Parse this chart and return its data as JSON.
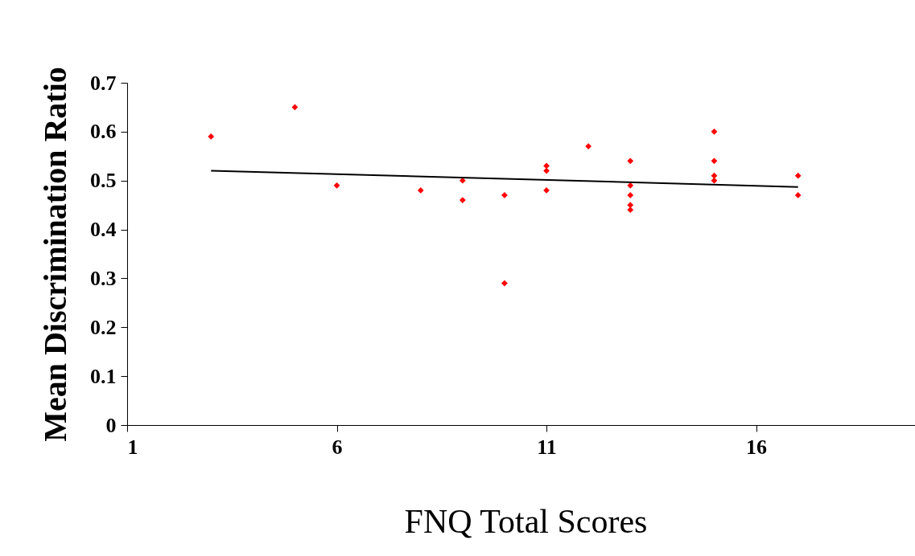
{
  "chart_data": {
    "type": "scatter",
    "xlabel": "FNQ Total Scores",
    "ylabel": "Mean Discrimination Ratio",
    "grid": false,
    "xlim": [
      1,
      20
    ],
    "xticks": [
      1,
      6,
      11,
      16
    ],
    "ylim": [
      0,
      0.7
    ],
    "yticks": [
      0,
      0.1,
      0.2,
      0.3,
      0.4,
      0.5,
      0.6,
      0.7
    ],
    "series": [
      {
        "type": "scatter",
        "marker": "diamond",
        "color": "#ff0000",
        "x": [
          3,
          5,
          6,
          8,
          9,
          9,
          10,
          10,
          11,
          11,
          11,
          12,
          13,
          13,
          13,
          13,
          13,
          15,
          15,
          15,
          15,
          17,
          17
        ],
        "values": [
          0.59,
          0.65,
          0.49,
          0.48,
          0.5,
          0.46,
          0.47,
          0.29,
          0.53,
          0.52,
          0.48,
          0.57,
          0.54,
          0.49,
          0.47,
          0.45,
          0.44,
          0.6,
          0.54,
          0.51,
          0.5,
          0.51,
          0.47
        ]
      },
      {
        "type": "line",
        "marker": "none",
        "color": "#000000",
        "x": [
          3,
          17
        ],
        "values": [
          0.52,
          0.487
        ]
      }
    ]
  }
}
